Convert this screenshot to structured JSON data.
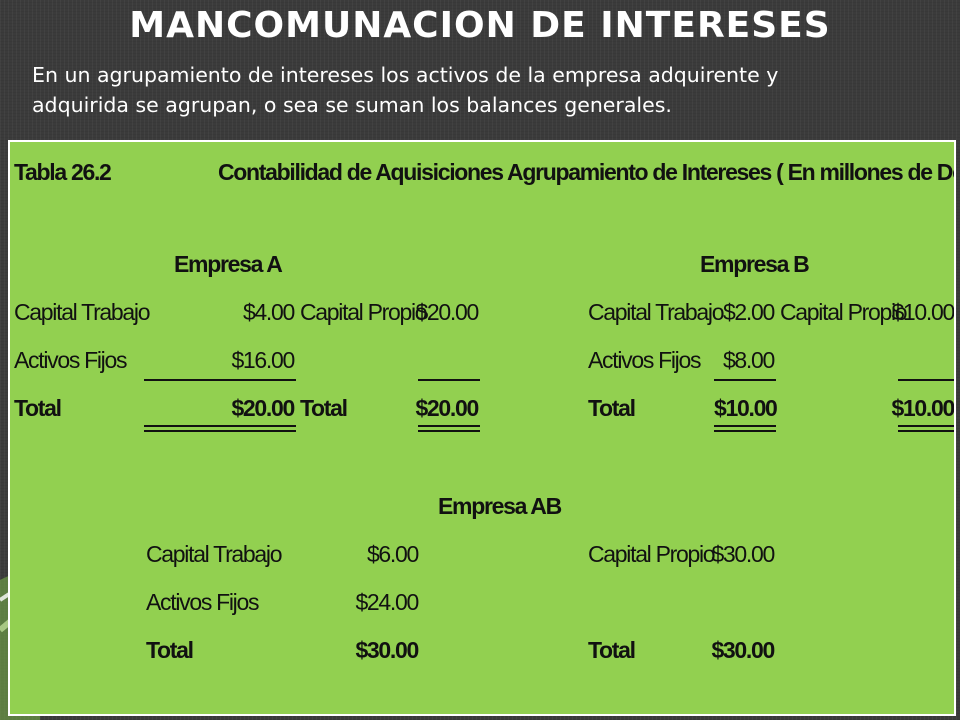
{
  "slide": {
    "title": "MANCOMUNACION  DE INTERESES",
    "subtitle_line1": "En un agrupamiento de intereses los activos de la empresa adquirente y",
    "subtitle_line2": "adquirida se agrupan,  o sea se suman los balances generales."
  },
  "table": {
    "id_label": "Tabla 26.2",
    "title": "Contabilidad de Aquisiciones Agrupamiento de Intereses ( En millones de Dolares)",
    "empresa_a": {
      "heading": "Empresa A",
      "capital_trabajo_label": "Capital Trabajo",
      "capital_trabajo_value": "$4.00",
      "capital_propio_label": "Capital Propio",
      "capital_propio_value": "$20.00",
      "activos_fijos_label": "Activos Fijos",
      "activos_fijos_value": "$16.00",
      "total_label": "Total",
      "total_value": "$20.00",
      "total2_label": "Total",
      "total2_value": "$20.00"
    },
    "empresa_b": {
      "heading": "Empresa B",
      "capital_trabajo_label": "Capital Trabajo",
      "capital_trabajo_value": "$2.00",
      "capital_propio_label": "Capital Propio",
      "capital_propio_value": "$10.00",
      "activos_fijos_label": "Activos Fijos",
      "activos_fijos_value": "$8.00",
      "total_label": "Total",
      "total_value": "$10.00",
      "total2_value": "$10.00"
    },
    "empresa_ab": {
      "heading": "Empresa AB",
      "capital_trabajo_label": "Capital Trabajo",
      "capital_trabajo_value": "$6.00",
      "activos_fijos_label": "Activos Fijos",
      "activos_fijos_value": "$24.00",
      "total_label": "Total",
      "total_value": "$30.00",
      "capital_propio_label": "Capital Propio",
      "capital_propio_value": "$30.00",
      "total2_label": "Total",
      "total2_value": "$30.00"
    }
  },
  "colors": {
    "background": "#3b3b3b",
    "panel": "#92d050",
    "accent": "#8cc63f"
  }
}
